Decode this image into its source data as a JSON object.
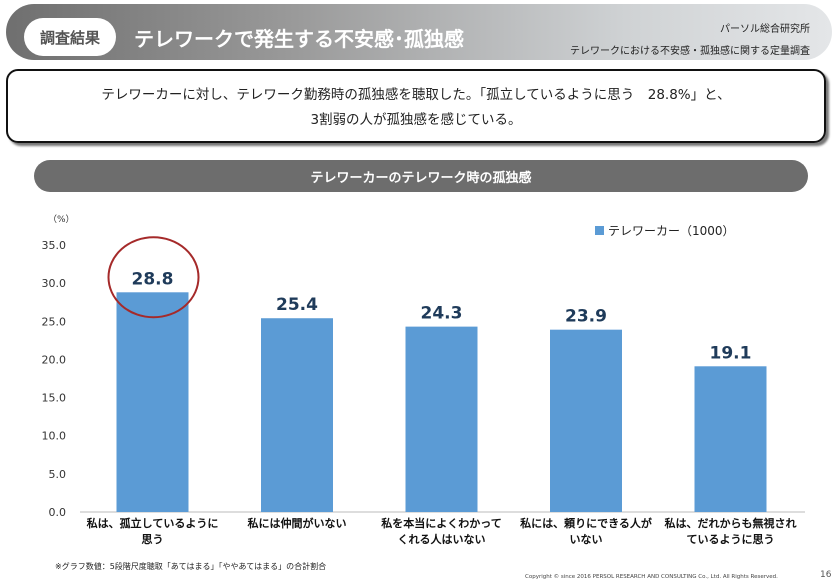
{
  "header": {
    "badge": "調査結果",
    "title": "テレワークで発生する不安感･孤独感",
    "org": "パーソル総合研究所",
    "survey": "テレワークにおける不安感・孤独感に関する定量調査"
  },
  "message": {
    "line1": "テレワーカーに対し、テレワーク勤務時の孤独感を聴取した。「孤立しているように思う　28.8%」と、",
    "line2": "3割弱の人が孤独感を感じている。"
  },
  "section_title": "テレワーカーのテレワーク時の孤独感",
  "chart_data": {
    "type": "bar",
    "title": "",
    "ylabel": "（%）",
    "ylim": [
      0,
      35
    ],
    "yticks": [
      "0.0",
      "5.0",
      "10.0",
      "15.0",
      "20.0",
      "25.0",
      "30.0",
      "35.0"
    ],
    "categories": [
      [
        "私は、孤立しているように",
        "思う"
      ],
      [
        "私には仲間がいない"
      ],
      [
        "私を本当によくわかって",
        "くれる人はいない"
      ],
      [
        "私には、頼りにできる人が",
        "いない"
      ],
      [
        "私は、だれからも無視され",
        "ているように思う"
      ]
    ],
    "series": [
      {
        "name": "テレワーカー（1000）",
        "values": [
          28.8,
          25.4,
          24.3,
          23.9,
          19.1
        ],
        "labels": [
          "28.8",
          "25.4",
          "24.3",
          "23.9",
          "19.1"
        ]
      }
    ],
    "bar_color": "#5b9bd5",
    "highlight_color": "#a52a2a",
    "legend": "top-right",
    "grid": false
  },
  "footer": {
    "note": "※グラフ数値：5段階尺度聴取「あてはまる」「ややあてはまる」の合計割合",
    "copyright": "Copyright © since 2016 PERSOL RESEARCH AND CONSULTING Co., Ltd. All Rights Reserved.",
    "page": "16"
  }
}
